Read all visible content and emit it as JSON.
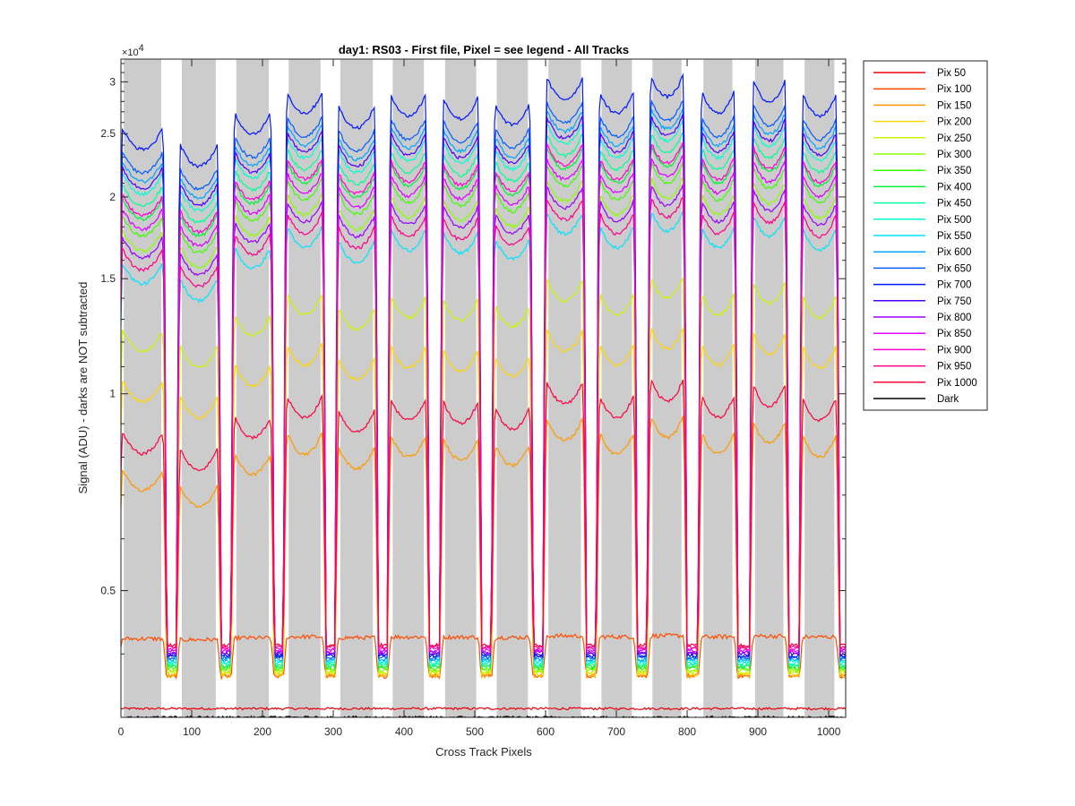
{
  "chart_data": {
    "type": "line",
    "title": "day1: RS03 - First file, Pixel = see legend - All Tracks",
    "xlabel": "Cross Track Pixels",
    "ylabel": "Signal (ADU) - darks are NOT subtracted",
    "xlim": [
      0,
      1024
    ],
    "ylim": [
      3200,
      32500
    ],
    "yscale": "log",
    "y_multiplier_label": "×10",
    "y_multiplier_exponent": "4",
    "x_ticks": [
      0,
      100,
      200,
      300,
      400,
      500,
      600,
      700,
      800,
      900,
      1000
    ],
    "x_tick_labels": [
      "0",
      "100",
      "200",
      "300",
      "400",
      "500",
      "600",
      "700",
      "800",
      "900",
      "1000"
    ],
    "y_ticks": [
      5000,
      10000,
      15000,
      20000,
      25000,
      30000
    ],
    "y_tick_labels": [
      "0.5",
      "1",
      "1.5",
      "2",
      "2.5",
      "3"
    ],
    "shaded_bands": [
      [
        4,
        57
      ],
      [
        86,
        134
      ],
      [
        163,
        209
      ],
      [
        237,
        282
      ],
      [
        310,
        356
      ],
      [
        384,
        428
      ],
      [
        458,
        502
      ],
      [
        531,
        575
      ],
      [
        604,
        650
      ],
      [
        679,
        722
      ],
      [
        751,
        792
      ],
      [
        823,
        864
      ],
      [
        896,
        936
      ],
      [
        966,
        1008
      ]
    ],
    "track_peak_levels": [
      0.88,
      0.83,
      0.93,
      1.0,
      0.95,
      0.99,
      0.98,
      0.96,
      1.05,
      1.0,
      1.06,
      1.0,
      1.04,
      0.99
    ],
    "legend_location": "outside-right",
    "series": [
      {
        "name": "Pix 50",
        "color": "#e8000b",
        "level": 3300,
        "kind": "flat"
      },
      {
        "name": "Pix 100",
        "color": "#ff4d00",
        "level": 4250,
        "kind": "low"
      },
      {
        "name": "Pix 150",
        "color": "#ff9900",
        "level": 8700,
        "kind": "track"
      },
      {
        "name": "Pix 200",
        "color": "#ffd500",
        "level": 11900,
        "kind": "track"
      },
      {
        "name": "Pix 250",
        "color": "#c8f500",
        "level": 14200,
        "kind": "track"
      },
      {
        "name": "Pix 300",
        "color": "#8cff00",
        "level": 20200,
        "kind": "track"
      },
      {
        "name": "Pix 350",
        "color": "#3dff00",
        "level": 21300,
        "kind": "track"
      },
      {
        "name": "Pix 400",
        "color": "#00f23a",
        "level": 22600,
        "kind": "track"
      },
      {
        "name": "Pix 450",
        "color": "#00ff9a",
        "level": 23700,
        "kind": "track"
      },
      {
        "name": "Pix 500",
        "color": "#00ffd0",
        "level": 24700,
        "kind": "track"
      },
      {
        "name": "Pix 550",
        "color": "#00e4ff",
        "level": 18000,
        "kind": "track"
      },
      {
        "name": "Pix 600",
        "color": "#00a6ff",
        "level": 25800,
        "kind": "track"
      },
      {
        "name": "Pix 650",
        "color": "#005eff",
        "level": 26600,
        "kind": "track"
      },
      {
        "name": "Pix 700",
        "color": "#0015ff",
        "level": 28900,
        "kind": "track"
      },
      {
        "name": "Pix 750",
        "color": "#4d00ff",
        "level": 25200,
        "kind": "track"
      },
      {
        "name": "Pix 800",
        "color": "#9a00ff",
        "level": 19700,
        "kind": "track"
      },
      {
        "name": "Pix 850",
        "color": "#dd00ff",
        "level": 21800,
        "kind": "track"
      },
      {
        "name": "Pix 900",
        "color": "#ff00d0",
        "level": 22900,
        "kind": "track"
      },
      {
        "name": "Pix 950",
        "color": "#ff008a",
        "level": 18900,
        "kind": "track"
      },
      {
        "name": "Pix 1000",
        "color": "#ff0040",
        "level": 9900,
        "kind": "track"
      },
      {
        "name": "Dark",
        "color": "#000000",
        "level": 3200,
        "kind": "flat"
      }
    ]
  }
}
